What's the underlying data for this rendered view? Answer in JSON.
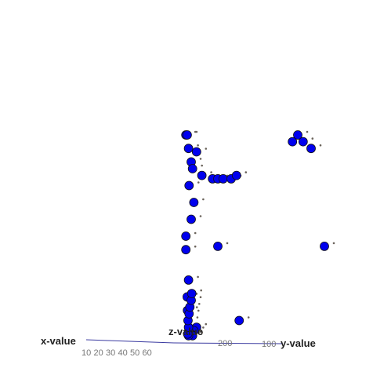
{
  "chart_data": {
    "type": "scatter",
    "title": "",
    "axes": {
      "x": {
        "title": "x-value",
        "ticks": [
          "10",
          "20",
          "30",
          "40",
          "50",
          "60"
        ]
      },
      "y": {
        "title": "y-value",
        "ticks": [
          "100"
        ]
      },
      "z": {
        "title": "z-value",
        "ticks": [
          "200"
        ]
      }
    },
    "colors": {
      "marker": "#0000ee",
      "marker_edge": "#111111",
      "shadow": "#6b645c",
      "axis": "#3a3aa0"
    },
    "series": [
      {
        "x": [
          8,
          8.5,
          9,
          10,
          10.5,
          9.2,
          12,
          14,
          18,
          20,
          22,
          25,
          27,
          11,
          10,
          8,
          8,
          20,
          60,
          55,
          52,
          48,
          50,
          9,
          8.5,
          8.6,
          28,
          12,
          11,
          10,
          10.5,
          9,
          8.7,
          9,
          8.8,
          9.2,
          9.5,
          10,
          10.2
        ],
        "y": [
          60,
          60,
          56,
          52,
          50,
          45,
          55,
          48,
          47,
          47,
          47,
          47,
          48,
          40,
          35,
          30,
          26,
          27,
          27,
          56,
          58,
          58,
          60,
          17,
          12,
          8,
          5,
          3,
          2,
          1,
          0.5,
          0.5,
          1,
          3,
          5,
          7,
          9,
          11,
          13
        ]
      }
    ]
  }
}
